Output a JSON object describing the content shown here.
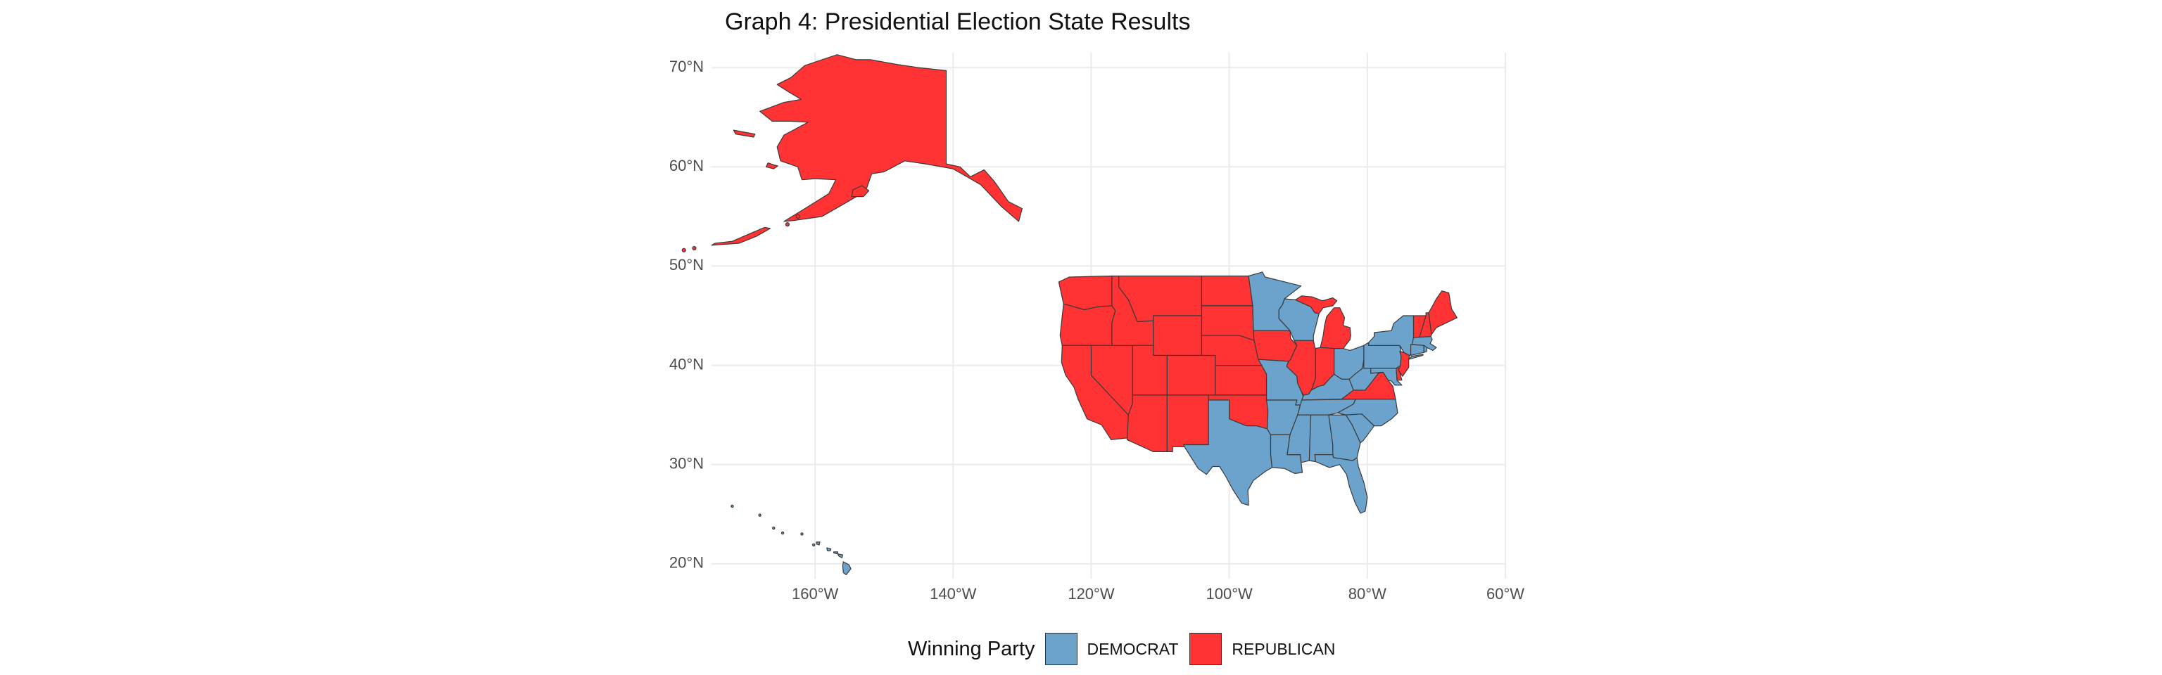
{
  "title": "Graph 4: Presidential Election State Results",
  "colors": {
    "democrat": "#6ba3cc",
    "republican": "#ff3333"
  },
  "legend": {
    "title": "Winning Party",
    "entries": [
      {
        "label": "DEMOCRAT",
        "color": "#6ba3cc"
      },
      {
        "label": "REPUBLICAN",
        "color": "#ff3333"
      }
    ]
  },
  "chart_data": {
    "type": "map",
    "title": "Graph 4: Presidential Election State Results",
    "x_ticks": [
      {
        "value": -160,
        "label": "160°W"
      },
      {
        "value": -140,
        "label": "140°W"
      },
      {
        "value": -120,
        "label": "120°W"
      },
      {
        "value": -100,
        "label": "100°W"
      },
      {
        "value": -80,
        "label": "80°W"
      },
      {
        "value": -60,
        "label": "60°W"
      }
    ],
    "y_ticks": [
      {
        "value": 20,
        "label": "20°N"
      },
      {
        "value": 30,
        "label": "30°N"
      },
      {
        "value": 40,
        "label": "40°N"
      },
      {
        "value": 50,
        "label": "50°N"
      },
      {
        "value": 60,
        "label": "60°N"
      },
      {
        "value": 70,
        "label": "70°N"
      }
    ],
    "xlim": [
      -175,
      -60
    ],
    "ylim": [
      18.5,
      71.5
    ],
    "grid": true,
    "legend_position": "bottom",
    "fill_variable": "Winning Party",
    "states": {
      "Alaska": "REPUBLICAN",
      "Hawaii": "DEMOCRAT",
      "Washington": "REPUBLICAN",
      "Oregon": "REPUBLICAN",
      "California": "REPUBLICAN",
      "Nevada": "REPUBLICAN",
      "Idaho": "REPUBLICAN",
      "Montana": "REPUBLICAN",
      "Wyoming": "REPUBLICAN",
      "Utah": "REPUBLICAN",
      "Colorado": "REPUBLICAN",
      "Arizona": "REPUBLICAN",
      "New Mexico": "REPUBLICAN",
      "North Dakota": "REPUBLICAN",
      "South Dakota": "REPUBLICAN",
      "Nebraska": "REPUBLICAN",
      "Kansas": "REPUBLICAN",
      "Oklahoma": "REPUBLICAN",
      "Texas": "DEMOCRAT",
      "Minnesota": "DEMOCRAT",
      "Iowa": "REPUBLICAN",
      "Missouri": "DEMOCRAT",
      "Arkansas": "DEMOCRAT",
      "Louisiana": "DEMOCRAT",
      "Wisconsin": "DEMOCRAT",
      "Illinois": "REPUBLICAN",
      "Michigan": "REPUBLICAN",
      "Indiana": "REPUBLICAN",
      "Ohio": "DEMOCRAT",
      "Kentucky": "DEMOCRAT",
      "Tennessee": "DEMOCRAT",
      "Mississippi": "DEMOCRAT",
      "Alabama": "DEMOCRAT",
      "Georgia": "DEMOCRAT",
      "Florida": "DEMOCRAT",
      "South Carolina": "DEMOCRAT",
      "North Carolina": "DEMOCRAT",
      "Virginia": "REPUBLICAN",
      "West Virginia": "DEMOCRAT",
      "Pennsylvania": "DEMOCRAT",
      "New York": "DEMOCRAT",
      "Maryland": "DEMOCRAT",
      "Delaware": "REPUBLICAN",
      "New Jersey": "REPUBLICAN",
      "Connecticut": "DEMOCRAT",
      "Rhode Island": "DEMOCRAT",
      "Massachusetts": "DEMOCRAT",
      "Vermont": "REPUBLICAN",
      "New Hampshire": "REPUBLICAN",
      "Maine": "REPUBLICAN"
    }
  }
}
